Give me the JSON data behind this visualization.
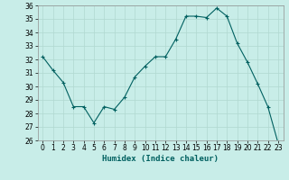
{
  "x": [
    0,
    1,
    2,
    3,
    4,
    5,
    6,
    7,
    8,
    9,
    10,
    11,
    12,
    13,
    14,
    15,
    16,
    17,
    18,
    19,
    20,
    21,
    22,
    23
  ],
  "y": [
    32.2,
    31.2,
    30.3,
    28.5,
    28.5,
    27.3,
    28.5,
    28.3,
    29.2,
    30.7,
    31.5,
    32.2,
    32.2,
    33.5,
    35.2,
    35.2,
    35.1,
    35.8,
    35.2,
    33.2,
    31.8,
    30.2,
    28.5,
    25.8
  ],
  "line_color": "#006060",
  "marker": "+",
  "marker_size": 3,
  "bg_color": "#c8ede8",
  "grid_color": "#b0d8d0",
  "xlabel": "Humidex (Indice chaleur)",
  "ylim": [
    26,
    36
  ],
  "xlim": [
    -0.5,
    23.5
  ],
  "yticks": [
    26,
    27,
    28,
    29,
    30,
    31,
    32,
    33,
    34,
    35,
    36
  ],
  "xticks": [
    0,
    1,
    2,
    3,
    4,
    5,
    6,
    7,
    8,
    9,
    10,
    11,
    12,
    13,
    14,
    15,
    16,
    17,
    18,
    19,
    20,
    21,
    22,
    23
  ]
}
